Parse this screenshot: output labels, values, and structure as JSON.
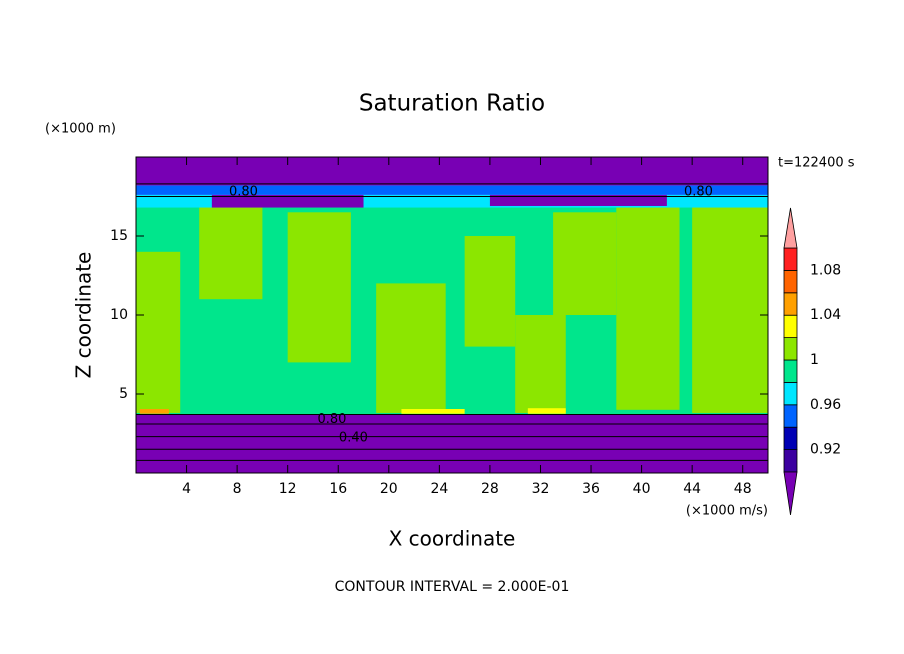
{
  "chart_data": {
    "type": "contour",
    "title": "Saturation Ratio",
    "xlabel": "X coordinate",
    "ylabel": "Z coordinate",
    "x_unit": "(×1000 m/s)",
    "y_unit": "(×1000 m)",
    "time_label": "t=122400 s",
    "footer": "CONTOUR INTERVAL = 2.000E-01",
    "xlim": [
      0,
      50
    ],
    "ylim": [
      0,
      20
    ],
    "xticks": [
      4,
      8,
      12,
      16,
      20,
      24,
      28,
      32,
      36,
      40,
      44,
      48
    ],
    "yticks": [
      5,
      10,
      15
    ],
    "colorbar": {
      "levels": [
        0.9,
        0.92,
        0.94,
        0.96,
        0.98,
        1,
        1.02,
        1.04,
        1.06,
        1.08,
        1.1
      ],
      "colors": [
        "#3c00a0",
        "#0000b4",
        "#0064ff",
        "#00e6ff",
        "#00e68c",
        "#8ce600",
        "#ffff00",
        "#ffa000",
        "#ff6400",
        "#ff2020"
      ],
      "under_color": "#7800b4",
      "over_color": "#ffa0a0",
      "ticks": [
        0.92,
        0.96,
        1,
        1.04,
        1.08
      ]
    },
    "regions": [
      {
        "x0": 0,
        "x1": 50,
        "y0": 3.7,
        "y1": 17.5,
        "value": 0.99
      },
      {
        "x0": 0,
        "x1": 3.5,
        "y0": 3.8,
        "y1": 14,
        "value": 1.01
      },
      {
        "x0": 5,
        "x1": 10,
        "y0": 11,
        "y1": 17.2,
        "value": 1.01
      },
      {
        "x0": 12,
        "x1": 17,
        "y0": 7,
        "y1": 16.5,
        "value": 1.01
      },
      {
        "x0": 19,
        "x1": 24.5,
        "y0": 3.8,
        "y1": 12,
        "value": 1.01
      },
      {
        "x0": 26,
        "x1": 30,
        "y0": 8,
        "y1": 15,
        "value": 1.01
      },
      {
        "x0": 30,
        "x1": 34,
        "y0": 3.8,
        "y1": 10,
        "value": 1.01
      },
      {
        "x0": 33,
        "x1": 38,
        "y0": 10,
        "y1": 16.5,
        "value": 1.01
      },
      {
        "x0": 38,
        "x1": 43,
        "y0": 4,
        "y1": 17,
        "value": 1.01
      },
      {
        "x0": 44,
        "x1": 50,
        "y0": 3.8,
        "y1": 17.3,
        "value": 1.01
      },
      {
        "x0": 0,
        "x1": 50,
        "y0": 0,
        "y1": 3.7,
        "value": 0.5
      },
      {
        "x0": 0,
        "x1": 50,
        "y0": 16.8,
        "y1": 17.6,
        "value": 0.97
      },
      {
        "x0": 0,
        "x1": 50,
        "y0": 17.6,
        "y1": 18.2,
        "value": 0.95
      },
      {
        "x0": 0,
        "x1": 50,
        "y0": 18.2,
        "y1": 20,
        "value": 0.7
      },
      {
        "x0": 6,
        "x1": 18,
        "y0": 16.8,
        "y1": 17.6,
        "value": 0.7
      },
      {
        "x0": 28,
        "x1": 42,
        "y0": 16.9,
        "y1": 17.6,
        "value": 0.7
      },
      {
        "x0": 0.3,
        "x1": 2.6,
        "y0": 3.75,
        "y1": 4.05,
        "value": 1.05
      },
      {
        "x0": 21,
        "x1": 26,
        "y0": 3.75,
        "y1": 4.05,
        "value": 1.03
      },
      {
        "x0": 31,
        "x1": 34,
        "y0": 3.75,
        "y1": 4.1,
        "value": 1.03
      }
    ],
    "contour_lines": [
      0.8,
      1.5,
      2.3,
      3.1,
      3.7,
      17.5,
      18.3
    ],
    "contour_labels": [
      {
        "x": 15.5,
        "y": 3.4,
        "label": "0.80"
      },
      {
        "x": 17.2,
        "y": 2.2,
        "label": "0.40"
      },
      {
        "x": 8.5,
        "y": 17.8,
        "label": "0.80"
      },
      {
        "x": 44.5,
        "y": 17.8,
        "label": "0.80"
      }
    ]
  }
}
